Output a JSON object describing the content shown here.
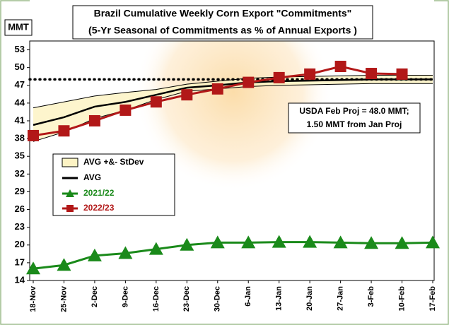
{
  "chart_data": {
    "type": "line",
    "title": [
      "Brazil Cumulative Weekly Corn Export \"Commitments\"",
      "(5-Yr Seasonal of Commitments as % of Annual Exports )"
    ],
    "y_label": "MMT",
    "categories": [
      "18-Nov",
      "25-Nov",
      "2-Dec",
      "9-Dec",
      "16-Dec",
      "23-Dec",
      "30-Dec",
      "6-Jan",
      "13-Jan",
      "20-Jan",
      "27-Jan",
      "3-Feb",
      "10-Feb",
      "17-Feb"
    ],
    "band": {
      "name": "AVG +&- StDev",
      "color": "#fdf3c4",
      "upper": [
        43.2,
        44.2,
        45.2,
        45.8,
        46.3,
        47.2,
        47.7,
        48.2,
        48.4,
        48.5,
        48.6,
        48.7,
        48.7,
        48.7
      ],
      "lower": [
        37.5,
        39.1,
        41.4,
        42.8,
        44.6,
        46.0,
        46.4,
        46.8,
        47.0,
        47.1,
        47.2,
        47.3,
        47.3,
        47.3
      ]
    },
    "series": [
      {
        "name": "AVG",
        "color": "#000000",
        "marker": "none",
        "values": [
          40.3,
          41.6,
          43.4,
          44.2,
          45.4,
          46.6,
          47.0,
          47.5,
          47.7,
          47.8,
          47.9,
          48.0,
          48.0,
          48.0
        ]
      },
      {
        "name": "2021/22",
        "color": "#1a8a1a",
        "marker": "triangle",
        "values": [
          16.0,
          16.6,
          18.2,
          18.6,
          19.3,
          20.0,
          20.4,
          20.4,
          20.5,
          20.5,
          20.4,
          20.3,
          20.3,
          20.4
        ]
      },
      {
        "name": "2022/23",
        "color": "#b21818",
        "marker": "square",
        "values": [
          38.5,
          39.3,
          41.0,
          42.8,
          44.2,
          45.4,
          46.4,
          47.5,
          48.3,
          48.9,
          50.2,
          49.0,
          48.9,
          null
        ]
      }
    ],
    "reference_line": {
      "value": 48.0,
      "annotation": [
        "USDA Feb Proj = 48.0 MMT;",
        "1.50 MMT from Jan Proj"
      ]
    },
    "ylim": [
      14,
      54.5
    ],
    "yticks": [
      14,
      17,
      20,
      23,
      26,
      29,
      32,
      35,
      38,
      41,
      44,
      47,
      50,
      53
    ],
    "grid": false,
    "legend_position": "left"
  }
}
